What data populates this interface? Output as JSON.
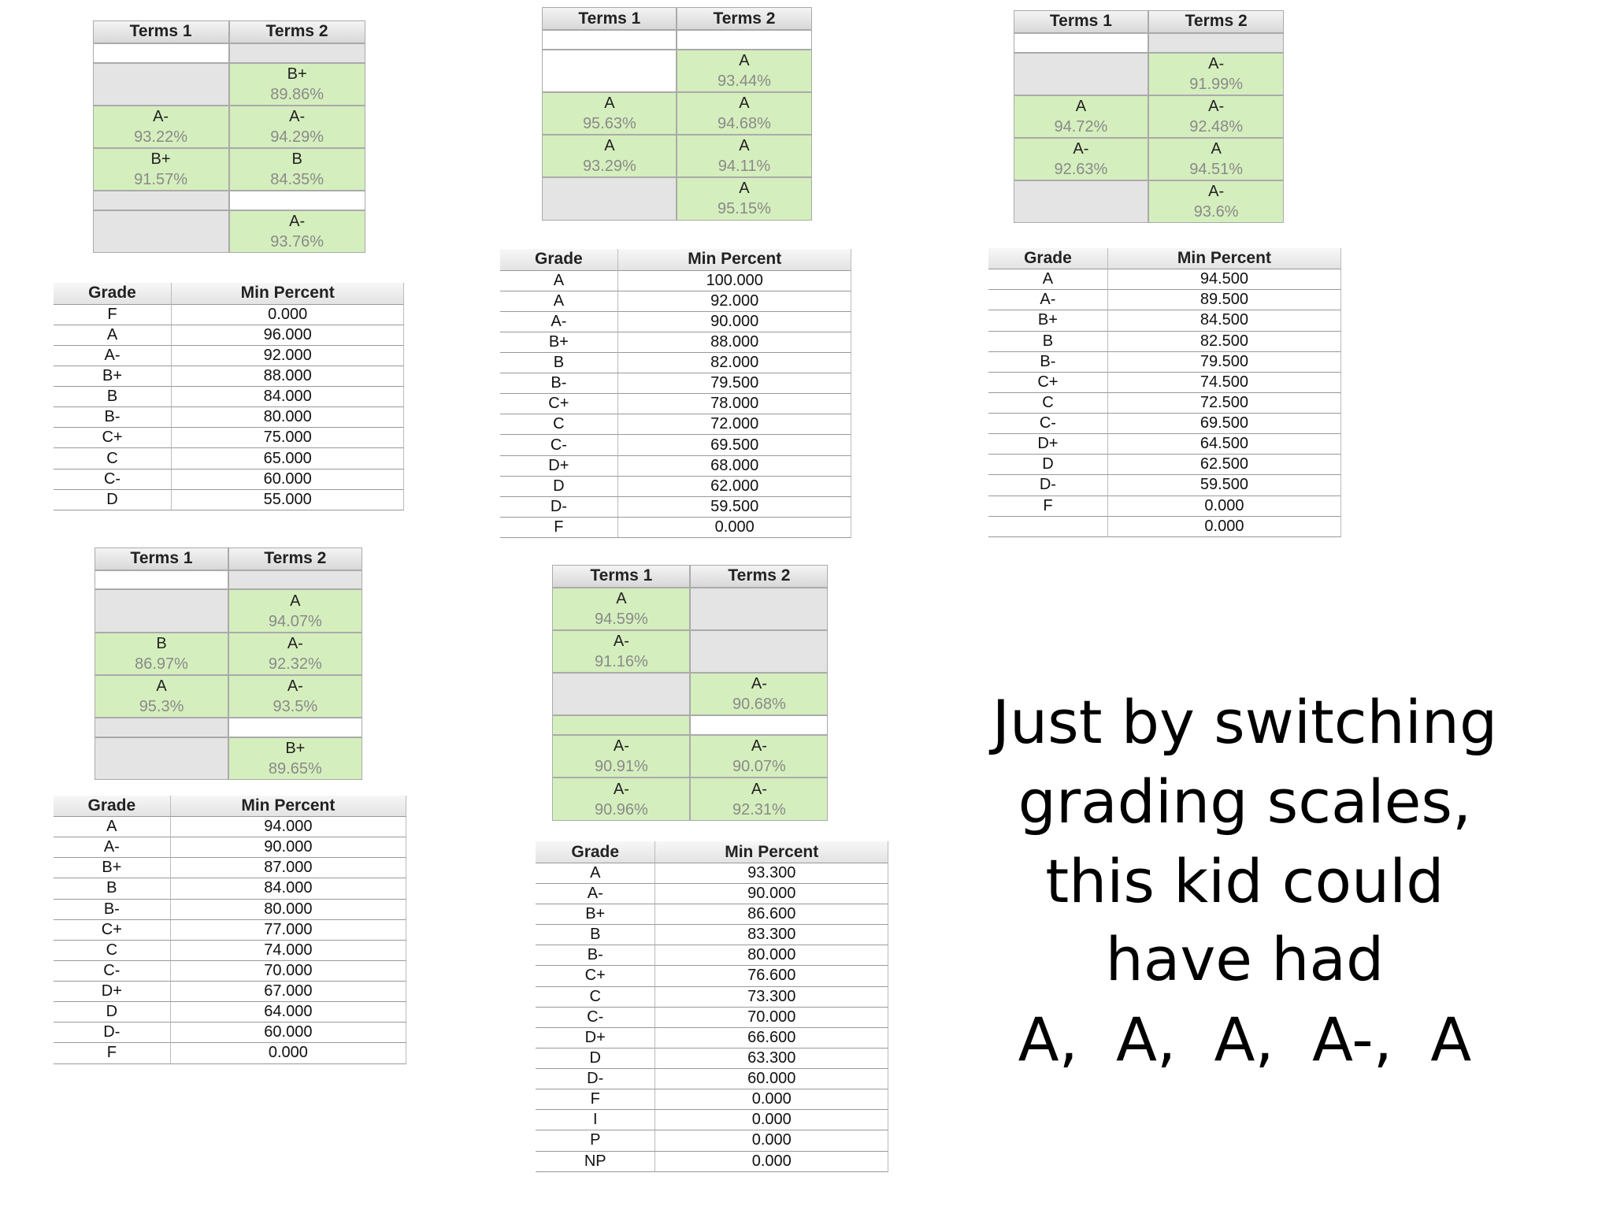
{
  "cell_color": "#d5eebd",
  "panels": [
    {
      "terms": {
        "header": [
          "Terms 1",
          "Terms 2"
        ],
        "rows": [
          [
            null,
            {
              "fill": "#e4e4e4"
            }
          ],
          [
            {
              "fill": "#e4e4e4"
            },
            {
              "grade": "B+",
              "percent": "89.86%"
            }
          ],
          [
            {
              "grade": "A-",
              "percent": "93.22%"
            },
            {
              "grade": "A-",
              "percent": "94.29%"
            }
          ],
          [
            {
              "grade": "B+",
              "percent": "91.57%"
            },
            {
              "grade": "B",
              "percent": "84.35%"
            }
          ],
          [
            {
              "fill": "#e4e4e4"
            },
            null
          ],
          [
            {
              "fill": "#e4e4e4"
            },
            {
              "grade": "A-",
              "percent": "93.76%"
            }
          ]
        ]
      },
      "scale": {
        "header": [
          "Grade",
          "Min Percent"
        ],
        "rows": [
          [
            "F",
            "0.000"
          ],
          [
            "A",
            "96.000"
          ],
          [
            "A-",
            "92.000"
          ],
          [
            "B+",
            "88.000"
          ],
          [
            "B",
            "84.000"
          ],
          [
            "B-",
            "80.000"
          ],
          [
            "C+",
            "75.000"
          ],
          [
            "C",
            "65.000"
          ],
          [
            "C-",
            "60.000"
          ],
          [
            "D",
            "55.000"
          ]
        ]
      }
    },
    {
      "terms": {
        "header": [
          "Terms 1",
          "Terms 2"
        ],
        "rows": [
          [
            null,
            null
          ],
          [
            null,
            {
              "grade": "A",
              "percent": "93.44%"
            }
          ],
          [
            {
              "grade": "A",
              "percent": "95.63%"
            },
            {
              "grade": "A",
              "percent": "94.68%"
            }
          ],
          [
            {
              "grade": "A",
              "percent": "93.29%"
            },
            {
              "grade": "A",
              "percent": "94.11%"
            }
          ],
          [
            {
              "fill": "#e4e4e4"
            },
            {
              "grade": "A",
              "percent": "95.15%"
            }
          ]
        ]
      },
      "scale": {
        "header": [
          "Grade",
          "Min Percent"
        ],
        "rows": [
          [
            "A",
            "100.000"
          ],
          [
            "A",
            "92.000"
          ],
          [
            "A-",
            "90.000"
          ],
          [
            "B+",
            "88.000"
          ],
          [
            "B",
            "82.000"
          ],
          [
            "B-",
            "79.500"
          ],
          [
            "C+",
            "78.000"
          ],
          [
            "C",
            "72.000"
          ],
          [
            "C-",
            "69.500"
          ],
          [
            "D+",
            "68.000"
          ],
          [
            "D",
            "62.000"
          ],
          [
            "D-",
            "59.500"
          ],
          [
            "F",
            "0.000"
          ]
        ]
      }
    },
    {
      "terms": {
        "header": [
          "Terms 1",
          "Terms 2"
        ],
        "rows": [
          [
            null,
            {
              "fill": "#e4e4e4"
            }
          ],
          [
            {
              "fill": "#e4e4e4"
            },
            {
              "grade": "A-",
              "percent": "91.99%"
            }
          ],
          [
            {
              "grade": "A",
              "percent": "94.72%"
            },
            {
              "grade": "A-",
              "percent": "92.48%"
            }
          ],
          [
            {
              "grade": "A-",
              "percent": "92.63%"
            },
            {
              "grade": "A",
              "percent": "94.51%"
            }
          ],
          [
            {
              "fill": "#e4e4e4"
            },
            {
              "grade": "A-",
              "percent": "93.6%"
            }
          ]
        ]
      },
      "scale": {
        "header": [
          "Grade",
          "Min Percent"
        ],
        "rows": [
          [
            "A",
            "94.500"
          ],
          [
            "A-",
            "89.500"
          ],
          [
            "B+",
            "84.500"
          ],
          [
            "B",
            "82.500"
          ],
          [
            "B-",
            "79.500"
          ],
          [
            "C+",
            "74.500"
          ],
          [
            "C",
            "72.500"
          ],
          [
            "C-",
            "69.500"
          ],
          [
            "D+",
            "64.500"
          ],
          [
            "D",
            "62.500"
          ],
          [
            "D-",
            "59.500"
          ],
          [
            "F",
            "0.000"
          ],
          [
            null,
            "0.000"
          ]
        ]
      }
    },
    {
      "terms": {
        "header": [
          "Terms 1",
          "Terms 2"
        ],
        "rows": [
          [
            null,
            {
              "fill": "#e4e4e4"
            }
          ],
          [
            {
              "fill": "#e4e4e4"
            },
            {
              "grade": "A",
              "percent": "94.07%"
            }
          ],
          [
            {
              "grade": "B",
              "percent": "86.97%"
            },
            {
              "grade": "A-",
              "percent": "92.32%"
            }
          ],
          [
            {
              "grade": "A",
              "percent": "95.3%"
            },
            {
              "grade": "A-",
              "percent": "93.5%"
            }
          ],
          [
            {
              "fill": "#e4e4e4"
            },
            null
          ],
          [
            {
              "fill": "#e4e4e4"
            },
            {
              "grade": "B+",
              "percent": "89.65%"
            }
          ]
        ]
      },
      "scale": {
        "header": [
          "Grade",
          "Min Percent"
        ],
        "rows": [
          [
            "A",
            "94.000"
          ],
          [
            "A-",
            "90.000"
          ],
          [
            "B+",
            "87.000"
          ],
          [
            "B",
            "84.000"
          ],
          [
            "B-",
            "80.000"
          ],
          [
            "C+",
            "77.000"
          ],
          [
            "C",
            "74.000"
          ],
          [
            "C-",
            "70.000"
          ],
          [
            "D+",
            "67.000"
          ],
          [
            "D",
            "64.000"
          ],
          [
            "D-",
            "60.000"
          ],
          [
            "F",
            "0.000"
          ]
        ]
      }
    },
    {
      "terms": {
        "header": [
          "Terms 1",
          "Terms 2"
        ],
        "rows": [
          [
            {
              "grade": "A",
              "percent": "94.59%"
            },
            {
              "fill": "#e4e4e4"
            }
          ],
          [
            {
              "grade": "A-",
              "percent": "91.16%"
            },
            {
              "fill": "#e4e4e4"
            }
          ],
          [
            {
              "fill": "#e4e4e4"
            },
            {
              "grade": "A-",
              "percent": "90.68%"
            }
          ],
          [
            {
              "fill": "#d5eebd"
            },
            null
          ],
          [
            {
              "grade": "A-",
              "percent": "90.91%"
            },
            {
              "grade": "A-",
              "percent": "90.07%"
            }
          ],
          [
            {
              "grade": "A-",
              "percent": "90.96%"
            },
            {
              "grade": "A-",
              "percent": "92.31%"
            }
          ]
        ]
      },
      "scale": {
        "header": [
          "Grade",
          "Min Percent"
        ],
        "rows": [
          [
            "A",
            "93.300"
          ],
          [
            "A-",
            "90.000"
          ],
          [
            "B+",
            "86.600"
          ],
          [
            "B",
            "83.300"
          ],
          [
            "B-",
            "80.000"
          ],
          [
            "C+",
            "76.600"
          ],
          [
            "C",
            "73.300"
          ],
          [
            "C-",
            "70.000"
          ],
          [
            "D+",
            "66.600"
          ],
          [
            "D",
            "63.300"
          ],
          [
            "D-",
            "60.000"
          ],
          [
            "F",
            "0.000"
          ],
          [
            "I",
            "0.000"
          ],
          [
            "P",
            "0.000"
          ],
          [
            "NP",
            "0.000"
          ]
        ]
      }
    }
  ],
  "message": {
    "lines": [
      "Just by switching",
      "grading scales,",
      "this kid could",
      "have had",
      "A,  A,  A,  A-,  A"
    ]
  }
}
